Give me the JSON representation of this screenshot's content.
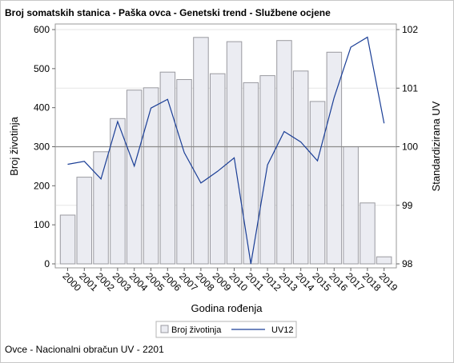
{
  "title": "Broj somatskih stanica - Paška ovca - Genetski trend - Službene ocjene",
  "footnote": "Ovce - Nacionalni obračun UV - 2201",
  "chart_data": {
    "type": "bar+line",
    "title": "Broj somatskih stanica - Paška ovca - Genetski trend - Službene ocjene",
    "xlabel": "Godina rođenja",
    "ylabel_left": "Broj životinja",
    "ylabel_right": "Standardizirana UV",
    "categories": [
      "2000",
      "2001",
      "2002",
      "2003",
      "2004",
      "2005",
      "2006",
      "2007",
      "2008",
      "2009",
      "2010",
      "2011",
      "2012",
      "2013",
      "2014",
      "2015",
      "2016",
      "2017",
      "2018",
      "2019"
    ],
    "ylim_left": [
      0,
      600
    ],
    "yticks_left": [
      0,
      100,
      200,
      300,
      400,
      500,
      600
    ],
    "ylim_right": [
      98,
      102
    ],
    "yticks_right": [
      98,
      99,
      100,
      101,
      102
    ],
    "reference_line_right": 100,
    "series": [
      {
        "name": "Broj životinja",
        "type": "bar",
        "axis": "left",
        "color": "#ebecf2",
        "stroke": "#9a9aa0",
        "values": [
          125,
          222,
          287,
          372,
          445,
          451,
          491,
          472,
          580,
          487,
          569,
          464,
          482,
          572,
          494,
          416,
          542,
          300,
          156,
          18
        ]
      },
      {
        "name": "UV12",
        "type": "line",
        "axis": "right",
        "color": "#1a3e96",
        "values": [
          99.7,
          99.75,
          99.45,
          100.43,
          99.67,
          100.66,
          100.81,
          99.9,
          99.38,
          99.58,
          99.81,
          98.0,
          99.69,
          100.26,
          100.08,
          99.76,
          100.84,
          101.7,
          101.87,
          100.4
        ]
      }
    ],
    "legend": {
      "position": "bottom",
      "entries": [
        "Broj životinja",
        "UV12"
      ]
    },
    "grid": true
  }
}
